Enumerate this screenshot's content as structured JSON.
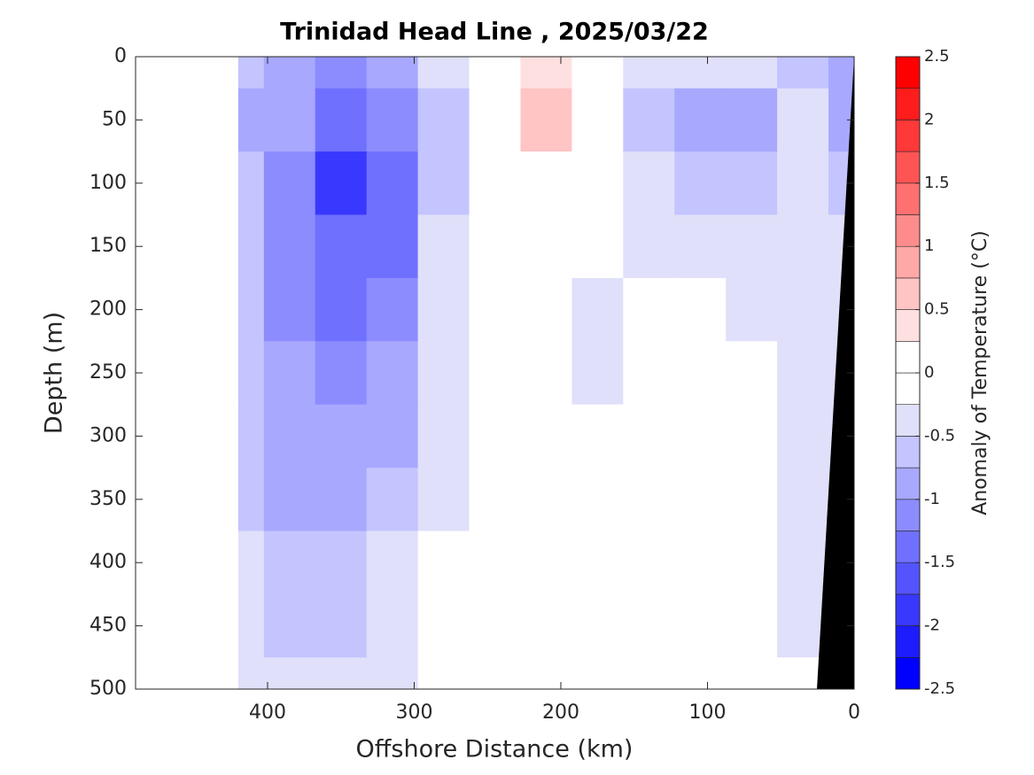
{
  "chart_data": {
    "type": "contourf",
    "title": "Trinidad Head Line , 2025/03/22",
    "x_label": "Offshore Distance (km)",
    "y_label": "Depth (m)",
    "colorbar_label": "Anomaly of Temperature (°C)",
    "x": [
      420,
      385,
      350,
      315,
      280,
      245,
      210,
      175,
      140,
      105,
      70,
      35,
      0
    ],
    "y": [
      0,
      50,
      100,
      150,
      200,
      250,
      300,
      350,
      400,
      450,
      500
    ],
    "z": [
      [
        -0.7,
        -0.8,
        -1.1,
        -0.8,
        -0.4,
        0,
        0.3,
        0,
        -0.3,
        -0.3,
        -0.3,
        -0.6,
        -0.9
      ],
      [
        -0.8,
        -1.0,
        -1.3,
        -1.1,
        -0.6,
        0,
        0.6,
        0,
        -0.6,
        -0.8,
        -0.8,
        -0.5,
        -0.9
      ],
      [
        -0.6,
        -1.2,
        -1.9,
        -1.3,
        -0.6,
        -0.1,
        0.1,
        -0.1,
        -0.5,
        -0.7,
        -0.6,
        -0.3,
        -0.6
      ],
      [
        -0.7,
        -1.2,
        -1.4,
        -1.3,
        -0.5,
        0,
        0,
        -0.1,
        -0.3,
        -0.4,
        -0.4,
        -0.3,
        -0.4
      ],
      [
        -0.7,
        -1.1,
        -1.3,
        -1.1,
        -0.5,
        0,
        0,
        -0.3,
        -0.2,
        -0.1,
        -0.3,
        -0.3,
        -0.4
      ],
      [
        -0.7,
        -1.0,
        -1.1,
        -0.9,
        -0.3,
        0,
        0,
        -0.3,
        0,
        0,
        -0.1,
        -0.3,
        -0.4
      ],
      [
        -0.6,
        -0.9,
        -1.0,
        -0.8,
        -0.3,
        0.1,
        0,
        0,
        0,
        0,
        0,
        -0.3,
        -0.4
      ],
      [
        -0.6,
        -0.8,
        -0.8,
        -0.7,
        -0.3,
        0,
        0,
        0,
        0,
        0,
        0,
        -0.3,
        -0.4
      ],
      [
        -0.5,
        -0.7,
        -0.7,
        -0.5,
        -0.2,
        0,
        0,
        0,
        0,
        0,
        -0.1,
        -0.3,
        -0.4
      ],
      [
        -0.4,
        -0.6,
        -0.6,
        -0.4,
        -0.2,
        0,
        0,
        0,
        0,
        0,
        -0.1,
        -0.3,
        -0.3
      ],
      [
        -0.4,
        -0.5,
        -0.5,
        -0.3,
        -0.1,
        0,
        0,
        0,
        0,
        0,
        0,
        -0.2,
        -0.2
      ]
    ],
    "xlim": [
      490,
      0
    ],
    "xticks": [
      400,
      300,
      200,
      100,
      0
    ],
    "ylim": [
      0,
      500
    ],
    "yticks": [
      0,
      50,
      100,
      150,
      200,
      250,
      300,
      350,
      400,
      450,
      500
    ],
    "levels": [
      -2.5,
      -2.25,
      -2,
      -1.75,
      -1.5,
      -1.25,
      -1,
      -0.75,
      -0.5,
      -0.25,
      0,
      0.25,
      0.5,
      0.75,
      1,
      1.25,
      1.5,
      1.75,
      2,
      2.25,
      2.5
    ],
    "colors": [
      "#0000ff",
      "#1c1cff",
      "#3838ff",
      "#5454ff",
      "#7070ff",
      "#8c8cff",
      "#a8a8ff",
      "#c4c4ff",
      "#e0e0fa",
      "#ffffff",
      "#ffffff",
      "#ffe0e0",
      "#ffc4c4",
      "#ffa8a8",
      "#ff8c8c",
      "#ff7070",
      "#ff5454",
      "#ff3838",
      "#ff1c1c",
      "#ff0000"
    ],
    "colorbar_ticks": [
      -2.5,
      -2,
      -1.5,
      -1,
      -0.5,
      0,
      0.5,
      1,
      1.5,
      2,
      2.5
    ]
  }
}
